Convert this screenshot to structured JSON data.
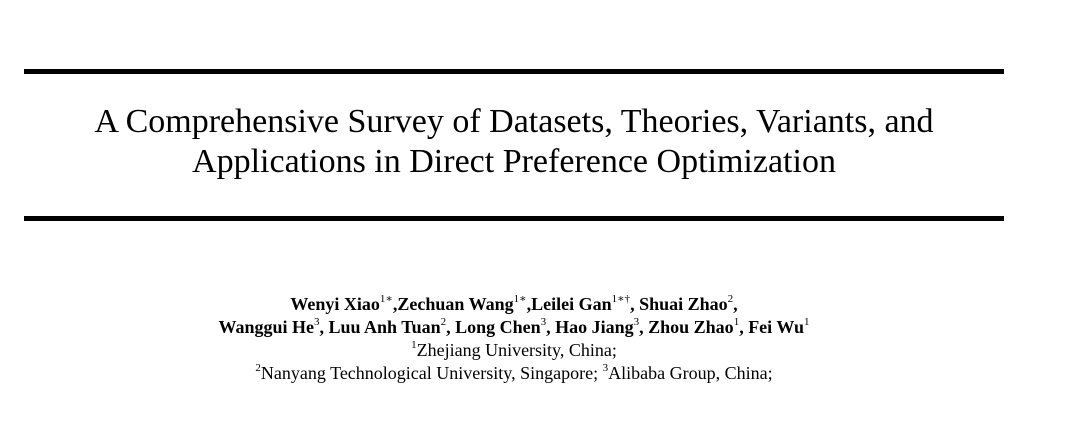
{
  "paper": {
    "title_lines": [
      "A Comprehensive Survey of Datasets, Theories, Variants, and",
      "Applications in Direct Preference Optimization"
    ],
    "authors_line1": [
      {
        "name": "Wenyi Xiao",
        "sup": "1∗",
        "sep": ","
      },
      {
        "name": "Zechuan Wang",
        "sup": "1∗",
        "sep": ","
      },
      {
        "name": "Leilei Gan",
        "sup": "1∗†",
        "sep": ", "
      },
      {
        "name": "Shuai Zhao",
        "sup": "2",
        "sep": ","
      }
    ],
    "authors_line2": [
      {
        "name": "Wanggui He",
        "sup": "3",
        "sep": ", "
      },
      {
        "name": "Luu Anh Tuan",
        "sup": "2",
        "sep": ", "
      },
      {
        "name": "Long Chen",
        "sup": "3",
        "sep": ", "
      },
      {
        "name": "Hao Jiang",
        "sup": "3",
        "sep": ", "
      },
      {
        "name": "Zhou Zhao",
        "sup": "1",
        "sep": ", "
      },
      {
        "name": "Fei Wu",
        "sup": "1",
        "sep": ""
      }
    ],
    "affiliation_line1": [
      {
        "sup": "1",
        "text": "Zhejiang University, China;"
      }
    ],
    "affiliation_line2": [
      {
        "sup": "2",
        "text": "Nanyang Technological University, Singapore; "
      },
      {
        "sup": "3",
        "text": "Alibaba Group, China;"
      }
    ]
  }
}
